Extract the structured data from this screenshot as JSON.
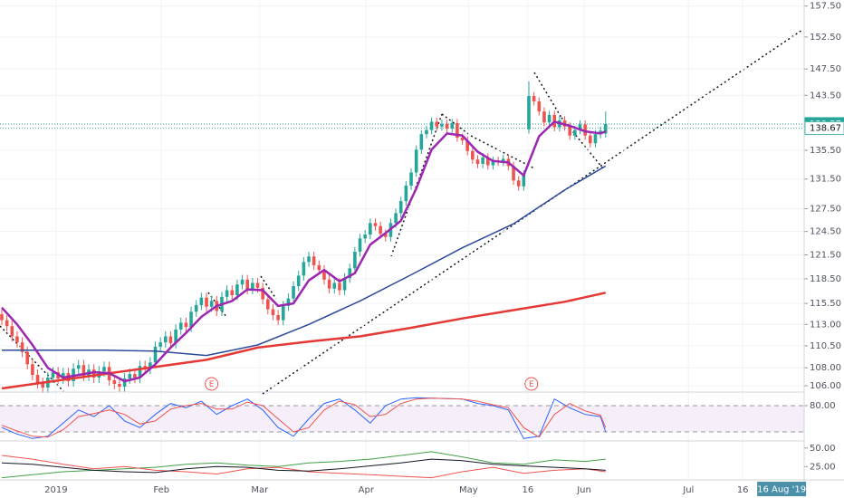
{
  "chart_data": {
    "type": "candlestick",
    "log_scale": true,
    "grid": true,
    "up_color": "#26a69a",
    "down_color": "#ef5350",
    "ylim": [
      105.4,
      158.5
    ],
    "yticks": [
      {
        "value": 106,
        "label": "106.00"
      },
      {
        "value": 108,
        "label": "108.00"
      },
      {
        "value": 110.5,
        "label": "110.50"
      },
      {
        "value": 113,
        "label": "113.00"
      },
      {
        "value": 115.5,
        "label": "115.50"
      },
      {
        "value": 118.5,
        "label": "118.50"
      },
      {
        "value": 121.5,
        "label": "121.50"
      },
      {
        "value": 124.5,
        "label": "124.50"
      },
      {
        "value": 127.5,
        "label": "127.50"
      },
      {
        "value": 131.5,
        "label": "131.50"
      },
      {
        "value": 135.5,
        "label": "135.50"
      },
      {
        "value": 143.5,
        "label": "143.50"
      },
      {
        "value": 147.5,
        "label": "147.50"
      },
      {
        "value": 152.5,
        "label": "152.50"
      },
      {
        "value": 157.5,
        "label": "157.50"
      }
    ],
    "xlim": [
      -0.35,
      156.8
    ],
    "xticks": [
      {
        "value": 10.6,
        "label": "2019"
      },
      {
        "value": 31.2,
        "label": "Feb"
      },
      {
        "value": 50.4,
        "label": "Mar"
      },
      {
        "value": 71.2,
        "label": "Apr"
      },
      {
        "value": 91.2,
        "label": "May"
      },
      {
        "value": 102.8,
        "label": "16"
      },
      {
        "value": 113.8,
        "label": "Jun"
      },
      {
        "value": 134.2,
        "label": "Jul"
      },
      {
        "value": 144.8,
        "label": "16"
      }
    ],
    "crosshair_date": {
      "value": 152.4,
      "label": "16 Aug '19"
    },
    "open": [
      114.2,
      113.5,
      112.8,
      111.6,
      110.9,
      109.8,
      108.4,
      107.2,
      106.3,
      105.8,
      106.9,
      107.5,
      106.8,
      107.4,
      106.5,
      107.9,
      108.3,
      107.1,
      107.8,
      106.9,
      107.6,
      108.1,
      106.6,
      106.2,
      105.9,
      106.8,
      107.3,
      106.9,
      108.2,
      107.9,
      108.6,
      110.4,
      110.9,
      111.6,
      110.8,
      112.4,
      113.2,
      112.7,
      114.5,
      115.3,
      116.2,
      115.1,
      115.8,
      114.6,
      116.3,
      117.1,
      116.5,
      117.8,
      118.4,
      117.2,
      118.0,
      117.4,
      116.0,
      114.8,
      114.1,
      113.5,
      115.2,
      116.1,
      117.6,
      118.9,
      120.6,
      121.3,
      120.2,
      119.6,
      118.4,
      117.3,
      118.0,
      117.1,
      118.6,
      119.8,
      121.9,
      123.6,
      124.1,
      125.6,
      125.2,
      124.2,
      123.8,
      125.6,
      126.9,
      128.5,
      130.6,
      132.4,
      135.6,
      137.8,
      138.4,
      139.6,
      138.9,
      139.3,
      138.6,
      139.4,
      137.3,
      136.9,
      135.4,
      134.2,
      133.6,
      134.5,
      133.4,
      134.0,
      133.9,
      134.3,
      133.3,
      131.3,
      130.5,
      138.5,
      143.4,
      142.6,
      141.1,
      139.5,
      140.6,
      138.8,
      139.8,
      138.9,
      137.6,
      138.4,
      139.2,
      137.6,
      136.5,
      137.8,
      137.9
    ],
    "high": [
      114.8,
      114.1,
      113.4,
      112.2,
      111.5,
      110.4,
      109.0,
      107.8,
      106.9,
      107.5,
      108.1,
      108.1,
      108.0,
      108.0,
      108.5,
      108.9,
      108.9,
      108.4,
      108.4,
      108.2,
      108.7,
      108.7,
      107.2,
      106.8,
      107.4,
      107.9,
      107.9,
      108.8,
      108.8,
      109.2,
      111.0,
      111.5,
      112.2,
      112.2,
      113.0,
      113.8,
      113.8,
      115.1,
      115.9,
      116.8,
      116.8,
      116.4,
      116.4,
      116.9,
      117.7,
      117.7,
      118.4,
      119.0,
      119.0,
      118.6,
      118.6,
      118.0,
      116.6,
      115.4,
      114.7,
      115.8,
      116.7,
      118.2,
      119.5,
      121.2,
      121.9,
      121.9,
      120.8,
      120.2,
      119.0,
      118.6,
      118.6,
      119.2,
      120.4,
      122.5,
      124.2,
      124.7,
      126.2,
      126.2,
      125.8,
      124.8,
      126.2,
      127.5,
      129.1,
      131.2,
      133.0,
      136.2,
      138.4,
      139.0,
      140.2,
      140.2,
      139.9,
      139.9,
      140.0,
      140.0,
      137.9,
      137.5,
      136.0,
      134.8,
      135.1,
      135.1,
      134.6,
      134.6,
      134.9,
      134.9,
      133.9,
      131.9,
      132.7,
      145.6,
      144.0,
      143.2,
      141.7,
      141.2,
      141.2,
      140.4,
      140.4,
      139.5,
      139.0,
      139.8,
      139.8,
      138.2,
      138.4,
      138.9,
      141.1
    ],
    "low": [
      112.9,
      112.2,
      111.0,
      110.3,
      109.2,
      107.8,
      106.6,
      105.7,
      105.2,
      105.2,
      106.3,
      106.2,
      106.2,
      105.9,
      105.9,
      107.3,
      106.5,
      106.5,
      106.3,
      106.3,
      107.0,
      106.0,
      105.6,
      105.3,
      105.3,
      106.2,
      106.3,
      106.3,
      107.3,
      107.3,
      108.0,
      109.8,
      110.3,
      110.2,
      110.2,
      111.8,
      112.1,
      112.1,
      113.9,
      114.7,
      114.5,
      114.5,
      114.0,
      114.0,
      115.7,
      115.9,
      115.9,
      117.2,
      116.6,
      116.6,
      116.8,
      115.4,
      114.2,
      113.5,
      112.9,
      112.9,
      114.6,
      115.5,
      117.0,
      118.3,
      120.0,
      119.6,
      119.0,
      117.8,
      116.7,
      116.7,
      116.5,
      116.5,
      118.0,
      119.2,
      121.3,
      123.0,
      123.5,
      124.6,
      123.6,
      123.2,
      123.2,
      125.0,
      126.3,
      127.9,
      130.0,
      131.8,
      135.0,
      137.2,
      137.8,
      138.3,
      138.3,
      138.0,
      138.0,
      136.7,
      136.3,
      134.8,
      133.6,
      133.0,
      133.0,
      132.8,
      132.8,
      133.3,
      133.3,
      132.7,
      130.7,
      129.9,
      129.9,
      137.9,
      142.0,
      140.5,
      138.9,
      138.9,
      138.2,
      138.2,
      138.3,
      137.0,
      137.0,
      137.8,
      137.0,
      135.9,
      135.9,
      137.2,
      137.3
    ],
    "close": [
      113.5,
      112.8,
      111.6,
      110.9,
      109.8,
      108.4,
      107.2,
      106.3,
      105.8,
      106.9,
      107.5,
      106.8,
      107.4,
      106.5,
      107.9,
      108.3,
      107.1,
      107.8,
      106.9,
      107.6,
      108.1,
      106.6,
      106.2,
      105.9,
      106.8,
      107.3,
      106.9,
      108.2,
      107.9,
      108.6,
      110.4,
      110.9,
      111.6,
      110.8,
      112.4,
      113.2,
      112.7,
      114.5,
      115.3,
      116.2,
      115.1,
      115.8,
      114.6,
      116.3,
      117.1,
      116.5,
      117.8,
      118.4,
      117.2,
      118.0,
      117.4,
      116.0,
      114.8,
      114.1,
      113.5,
      115.2,
      116.1,
      117.6,
      118.9,
      120.6,
      121.3,
      120.2,
      119.6,
      118.4,
      117.3,
      118.0,
      117.1,
      118.6,
      119.8,
      121.9,
      123.6,
      124.1,
      125.6,
      125.2,
      124.2,
      123.8,
      125.6,
      126.9,
      128.5,
      130.6,
      132.4,
      135.6,
      137.8,
      138.4,
      139.6,
      138.9,
      139.3,
      138.6,
      139.4,
      137.3,
      136.9,
      135.4,
      134.2,
      133.6,
      134.5,
      133.4,
      134.0,
      133.9,
      134.3,
      133.3,
      131.3,
      130.5,
      132.1,
      143.4,
      142.6,
      141.1,
      139.5,
      140.6,
      138.8,
      139.8,
      138.9,
      137.6,
      138.4,
      139.2,
      137.6,
      136.5,
      137.8,
      138.3,
      139.27
    ],
    "overlays": [
      {
        "color": "#2c4a9a",
        "width": 1.5,
        "x": [
          0,
          10,
          20,
          30,
          40,
          50,
          60,
          70,
          80,
          90,
          100,
          110,
          118
        ],
        "values": [
          110.0,
          110.0,
          110.0,
          109.9,
          109.4,
          110.6,
          113.0,
          115.8,
          119.0,
          122.4,
          125.5,
          130.0,
          133.3
        ]
      },
      {
        "color": "#e53935",
        "width": 2.5,
        "x": [
          0,
          10,
          20,
          30,
          40,
          50,
          60,
          70,
          80,
          90,
          100,
          110,
          118
        ],
        "values": [
          105.7,
          106.5,
          107.3,
          108.1,
          108.9,
          110.3,
          111.0,
          111.6,
          112.6,
          113.7,
          114.7,
          115.7,
          116.8
        ]
      },
      {
        "color": "#9c27b0",
        "width": 2.5,
        "x": [
          0,
          3,
          6,
          9,
          12,
          15,
          18,
          21,
          24,
          27,
          30,
          33,
          36,
          39,
          42,
          45,
          48,
          51,
          54,
          57,
          60,
          63,
          66,
          69,
          72,
          75,
          78,
          81,
          84,
          87,
          90,
          93,
          96,
          99,
          102,
          105,
          108,
          111,
          114,
          117,
          118
        ],
        "values": [
          115.0,
          113.0,
          110.6,
          108.0,
          106.9,
          107.2,
          107.5,
          107.4,
          106.5,
          106.9,
          108.4,
          110.3,
          112.0,
          113.9,
          115.2,
          115.8,
          117.2,
          117.1,
          115.2,
          115.5,
          118.3,
          119.6,
          118.2,
          119.2,
          122.8,
          124.3,
          125.9,
          130.2,
          135.6,
          137.9,
          137.6,
          135.3,
          134.0,
          133.8,
          132.0,
          137.5,
          139.6,
          139.0,
          138.2,
          137.9,
          138.2
        ]
      }
    ],
    "price_lines": [
      {
        "value": 139.27,
        "color": "#26a69a",
        "text_color": "#ffffff"
      },
      {
        "value": 138.67,
        "color": "#4db6ac",
        "text_color": "#131722"
      }
    ],
    "events": [
      {
        "x": 41,
        "label": "E"
      },
      {
        "x": 103.5,
        "label": "E"
      }
    ],
    "panes": [
      {
        "type": "line",
        "ylim": [
          1.4,
          108.9
        ],
        "yticks": [
          {
            "value": 80,
            "label": "80.00"
          }
        ],
        "band": [
          20,
          80
        ],
        "series": [
          {
            "color": "#2962ff",
            "x": [
              0,
              3,
              6,
              9,
              12,
              15,
              18,
              21,
              24,
              27,
              30,
              33,
              36,
              39,
              42,
              45,
              48,
              51,
              54,
              57,
              60,
              63,
              66,
              69,
              72,
              75,
              78,
              81,
              84,
              87,
              90,
              93,
              96,
              99,
              102,
              105,
              108,
              111,
              114,
              117,
              118
            ],
            "values": [
              30,
              15,
              5,
              10,
              40,
              70,
              55,
              80,
              45,
              30,
              60,
              85,
              75,
              90,
              60,
              80,
              95,
              70,
              30,
              10,
              50,
              85,
              95,
              70,
              40,
              80,
              95,
              98,
              97,
              96,
              95,
              85,
              80,
              70,
              5,
              10,
              95,
              75,
              60,
              55,
              20
            ]
          },
          {
            "color": "#ef5350",
            "x": [
              0,
              3,
              6,
              9,
              12,
              15,
              18,
              21,
              24,
              27,
              30,
              33,
              36,
              39,
              42,
              45,
              48,
              51,
              54,
              57,
              60,
              63,
              66,
              69,
              72,
              75,
              78,
              81,
              84,
              87,
              90,
              93,
              96,
              99,
              102,
              105,
              108,
              111,
              114,
              117,
              118
            ],
            "values": [
              35,
              22,
              10,
              8,
              25,
              55,
              62,
              70,
              60,
              38,
              45,
              72,
              80,
              85,
              72,
              72,
              88,
              80,
              50,
              20,
              30,
              70,
              90,
              82,
              55,
              60,
              85,
              95,
              97,
              96,
              95,
              90,
              82,
              75,
              30,
              8,
              60,
              85,
              68,
              58,
              30
            ]
          }
        ]
      },
      {
        "type": "line",
        "ylim": [
          8.3,
          58.3
        ],
        "yticks": [
          {
            "value": 50,
            "label": "50.00"
          },
          {
            "value": 25,
            "label": "25.00"
          }
        ],
        "series": [
          {
            "color": "#43a047",
            "x": [
              0,
              6,
              12,
              18,
              24,
              30,
              36,
              42,
              48,
              54,
              60,
              66,
              72,
              78,
              84,
              90,
              96,
              102,
              108,
              114,
              118
            ],
            "values": [
              10,
              14,
              18,
              20,
              22,
              24,
              28,
              30,
              27,
              25,
              30,
              32,
              35,
              40,
              45,
              38,
              30,
              28,
              34,
              32,
              35
            ]
          },
          {
            "color": "#ef5350",
            "x": [
              0,
              6,
              12,
              18,
              24,
              30,
              36,
              42,
              48,
              54,
              60,
              66,
              72,
              78,
              84,
              90,
              96,
              102,
              108,
              114,
              118
            ],
            "values": [
              40,
              35,
              28,
              22,
              25,
              20,
              18,
              15,
              22,
              24,
              18,
              16,
              14,
              12,
              10,
              18,
              24,
              16,
              20,
              22,
              18
            ]
          },
          {
            "color": "#131722",
            "x": [
              0,
              6,
              12,
              18,
              24,
              30,
              36,
              42,
              48,
              54,
              60,
              66,
              72,
              78,
              84,
              90,
              96,
              102,
              108,
              114,
              118
            ],
            "values": [
              30,
              28,
              24,
              20,
              18,
              17,
              22,
              25,
              24,
              20,
              19,
              22,
              26,
              30,
              35,
              33,
              28,
              26,
              24,
              22,
              20
            ]
          }
        ]
      }
    ]
  }
}
